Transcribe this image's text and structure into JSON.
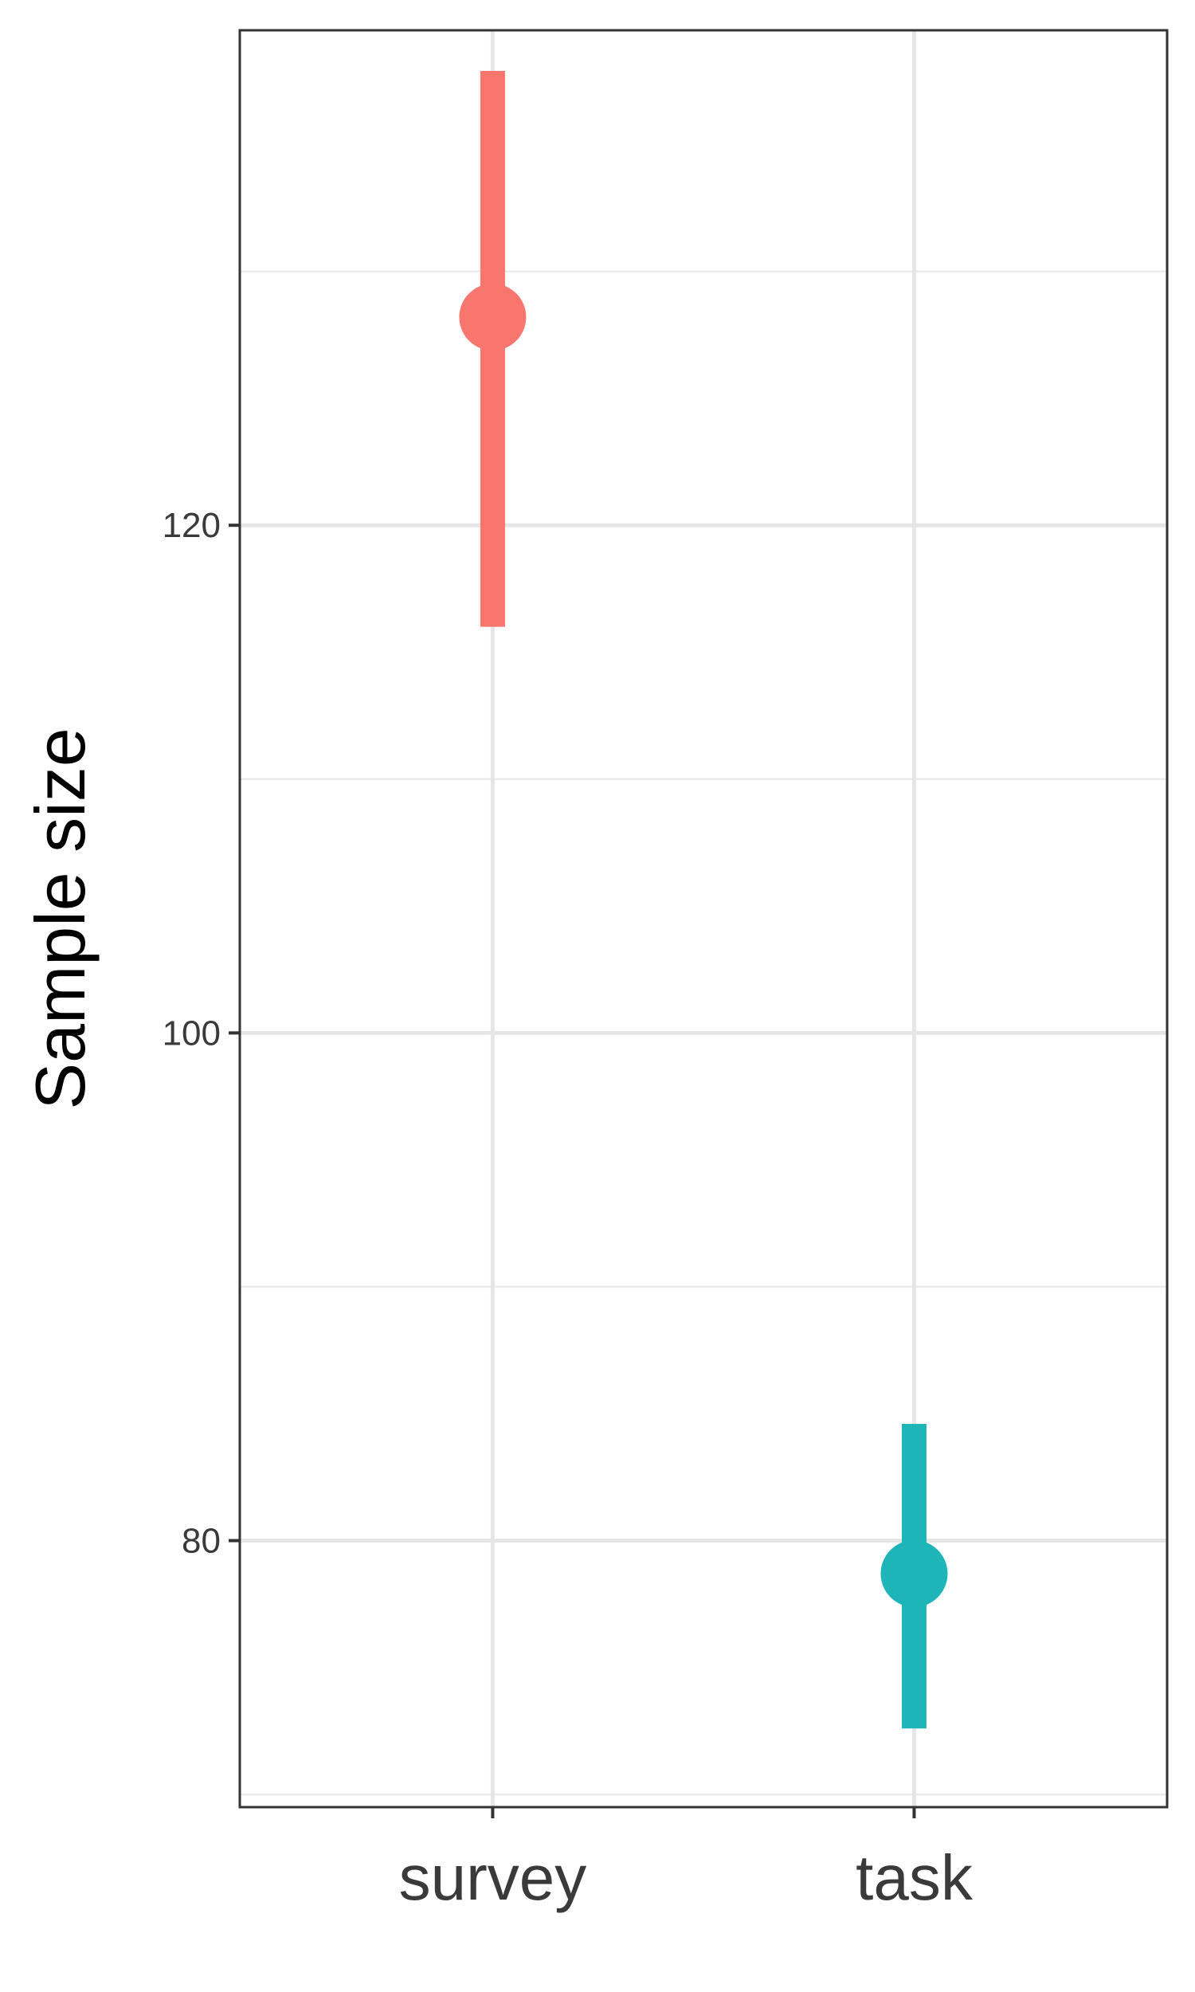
{
  "chart_data": {
    "type": "pointrange",
    "ylabel": "Sample size",
    "xlabel": "",
    "categories": [
      "survey",
      "task"
    ],
    "points": [
      {
        "category": "survey",
        "estimate": 128.2,
        "lower": 116.0,
        "upper": 137.9,
        "color": "#F8766D"
      },
      {
        "category": "task",
        "estimate": 78.7,
        "lower": 72.6,
        "upper": 84.6,
        "color": "#1EB5B8"
      }
    ],
    "y_ticks": [
      {
        "value": 80,
        "label": "80"
      },
      {
        "value": 100,
        "label": "100"
      },
      {
        "value": 120,
        "label": "120"
      }
    ],
    "y_minor_ticks": [
      70,
      90,
      110,
      130
    ],
    "ylim": [
      69.5,
      139.5
    ],
    "grid": true,
    "legend": "none"
  }
}
